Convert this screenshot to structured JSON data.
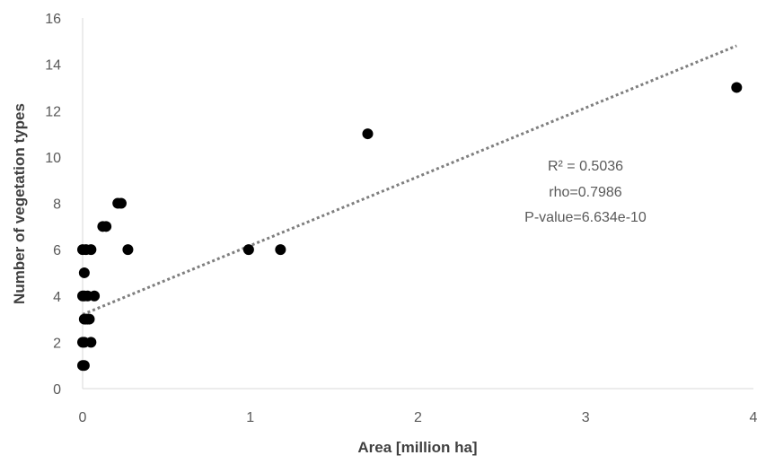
{
  "chart_data": {
    "type": "scatter",
    "title": "",
    "xlabel": "Area [million ha]",
    "ylabel": "Number of vegetation types",
    "xlim": [
      0,
      4
    ],
    "ylim": [
      0,
      16
    ],
    "x_ticks": [
      0,
      1,
      2,
      3,
      4
    ],
    "y_ticks": [
      0,
      2,
      4,
      6,
      8,
      10,
      12,
      14,
      16
    ],
    "grid": false,
    "legend": "none",
    "points": [
      {
        "x": 0.0,
        "y": 1
      },
      {
        "x": 0.01,
        "y": 1
      },
      {
        "x": 0.0,
        "y": 2
      },
      {
        "x": 0.01,
        "y": 2
      },
      {
        "x": 0.01,
        "y": 3
      },
      {
        "x": 0.02,
        "y": 3
      },
      {
        "x": 0.03,
        "y": 3
      },
      {
        "x": 0.04,
        "y": 3
      },
      {
        "x": 0.0,
        "y": 4
      },
      {
        "x": 0.01,
        "y": 4
      },
      {
        "x": 0.03,
        "y": 4
      },
      {
        "x": 0.01,
        "y": 5
      },
      {
        "x": 0.0,
        "y": 6
      },
      {
        "x": 0.02,
        "y": 6
      },
      {
        "x": 0.05,
        "y": 2
      },
      {
        "x": 0.07,
        "y": 4
      },
      {
        "x": 0.05,
        "y": 6
      },
      {
        "x": 0.12,
        "y": 7
      },
      {
        "x": 0.14,
        "y": 7
      },
      {
        "x": 0.21,
        "y": 8
      },
      {
        "x": 0.23,
        "y": 8
      },
      {
        "x": 0.27,
        "y": 6
      },
      {
        "x": 0.99,
        "y": 6
      },
      {
        "x": 1.18,
        "y": 6
      },
      {
        "x": 1.7,
        "y": 11
      },
      {
        "x": 3.9,
        "y": 13
      }
    ],
    "trendline": {
      "type": "linear",
      "style": "dotted",
      "color": "#7f7f7f",
      "x_start": 0.0,
      "y_start": 3.2,
      "x_end": 3.9,
      "y_end": 14.8
    },
    "marker_color": "#000000",
    "annotations": {
      "r2": "R² = 0.5036",
      "rho": "rho=0.7986",
      "pvalue": "P-value=6.634e-10"
    }
  }
}
